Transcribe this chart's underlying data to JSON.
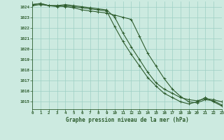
{
  "x": [
    0,
    1,
    2,
    3,
    4,
    5,
    6,
    7,
    8,
    9,
    10,
    11,
    12,
    13,
    14,
    15,
    16,
    17,
    18,
    19,
    20,
    21,
    22,
    23
  ],
  "line1": [
    1024.1,
    1024.2,
    1024.1,
    1024.1,
    1024.0,
    1023.9,
    1023.7,
    1023.6,
    1023.5,
    1023.4,
    1023.2,
    1023.0,
    1022.8,
    1021.2,
    1019.6,
    1018.4,
    1017.2,
    1016.2,
    1015.5,
    1015.0,
    1014.9,
    1015.2,
    1015.1,
    1014.7
  ],
  "line2": [
    1024.2,
    1024.3,
    1024.1,
    1024.1,
    1024.2,
    1024.1,
    1024.0,
    1023.9,
    1023.8,
    1023.7,
    1023.0,
    1021.5,
    1020.2,
    1019.0,
    1017.8,
    1016.8,
    1016.2,
    1015.8,
    1015.4,
    1015.2,
    1015.1,
    1015.3,
    1015.2,
    1015.0
  ],
  "line3": [
    1024.2,
    1024.3,
    1024.1,
    1024.0,
    1024.1,
    1024.0,
    1023.9,
    1023.8,
    1023.7,
    1023.6,
    1022.1,
    1020.7,
    1019.5,
    1018.4,
    1017.3,
    1016.5,
    1015.8,
    1015.4,
    1015.0,
    1014.8,
    1015.0,
    1015.4,
    1015.0,
    1014.6
  ],
  "bg_color": "#cceae0",
  "line_color": "#2d5c2d",
  "grid_color": "#9ecfc4",
  "xlabel": "Graphe pression niveau de la mer (hPa)",
  "yticks": [
    1015,
    1016,
    1017,
    1018,
    1019,
    1020,
    1021,
    1022,
    1023,
    1024
  ],
  "ylim": [
    1014.3,
    1024.5
  ],
  "xlim": [
    0,
    23
  ]
}
